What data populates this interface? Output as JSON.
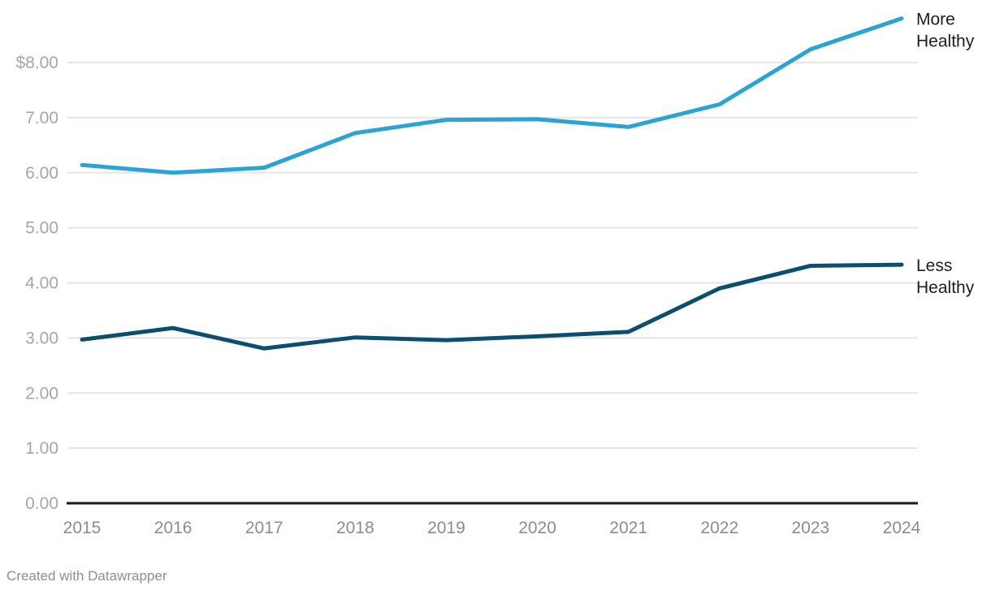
{
  "chart_data": {
    "type": "line",
    "x": [
      2015,
      2016,
      2017,
      2018,
      2019,
      2020,
      2021,
      2022,
      2023,
      2024
    ],
    "series": [
      {
        "name": "More Healthy",
        "label_lines": [
          "More",
          "Healthy"
        ],
        "color": "#2AA3D5",
        "values": [
          6.14,
          6.0,
          6.09,
          6.72,
          6.96,
          6.97,
          6.83,
          7.24,
          8.24,
          8.8
        ]
      },
      {
        "name": "Less Healthy",
        "label_lines": [
          "Less",
          "Healthy"
        ],
        "color": "#0D4E6E",
        "values": [
          2.97,
          3.18,
          2.81,
          3.01,
          2.96,
          3.03,
          3.11,
          3.9,
          4.31,
          4.33
        ]
      }
    ],
    "title": "",
    "xlabel": "",
    "ylabel": "",
    "ylim": [
      0,
      8.8
    ],
    "grid": true,
    "legend_position": "right-of-line-end",
    "y_ticks": [
      {
        "value": 8,
        "label": "$8.00"
      },
      {
        "value": 7,
        "label": "7.00"
      },
      {
        "value": 6,
        "label": "6.00"
      },
      {
        "value": 5,
        "label": "5.00"
      },
      {
        "value": 4,
        "label": "4.00"
      },
      {
        "value": 3,
        "label": "3.00"
      },
      {
        "value": 2,
        "label": "2.00"
      },
      {
        "value": 1,
        "label": "1.00"
      },
      {
        "value": 0,
        "label": "0.00"
      }
    ],
    "colors": {
      "gridline": "#e5e5e5",
      "axis_line": "#1a1a1a",
      "y_tick_text": "#a6a6a6",
      "x_tick_text": "#8c8c8c",
      "series_label_text": "#1d1d1d"
    }
  },
  "footer": {
    "text": "Created with Datawrapper"
  }
}
